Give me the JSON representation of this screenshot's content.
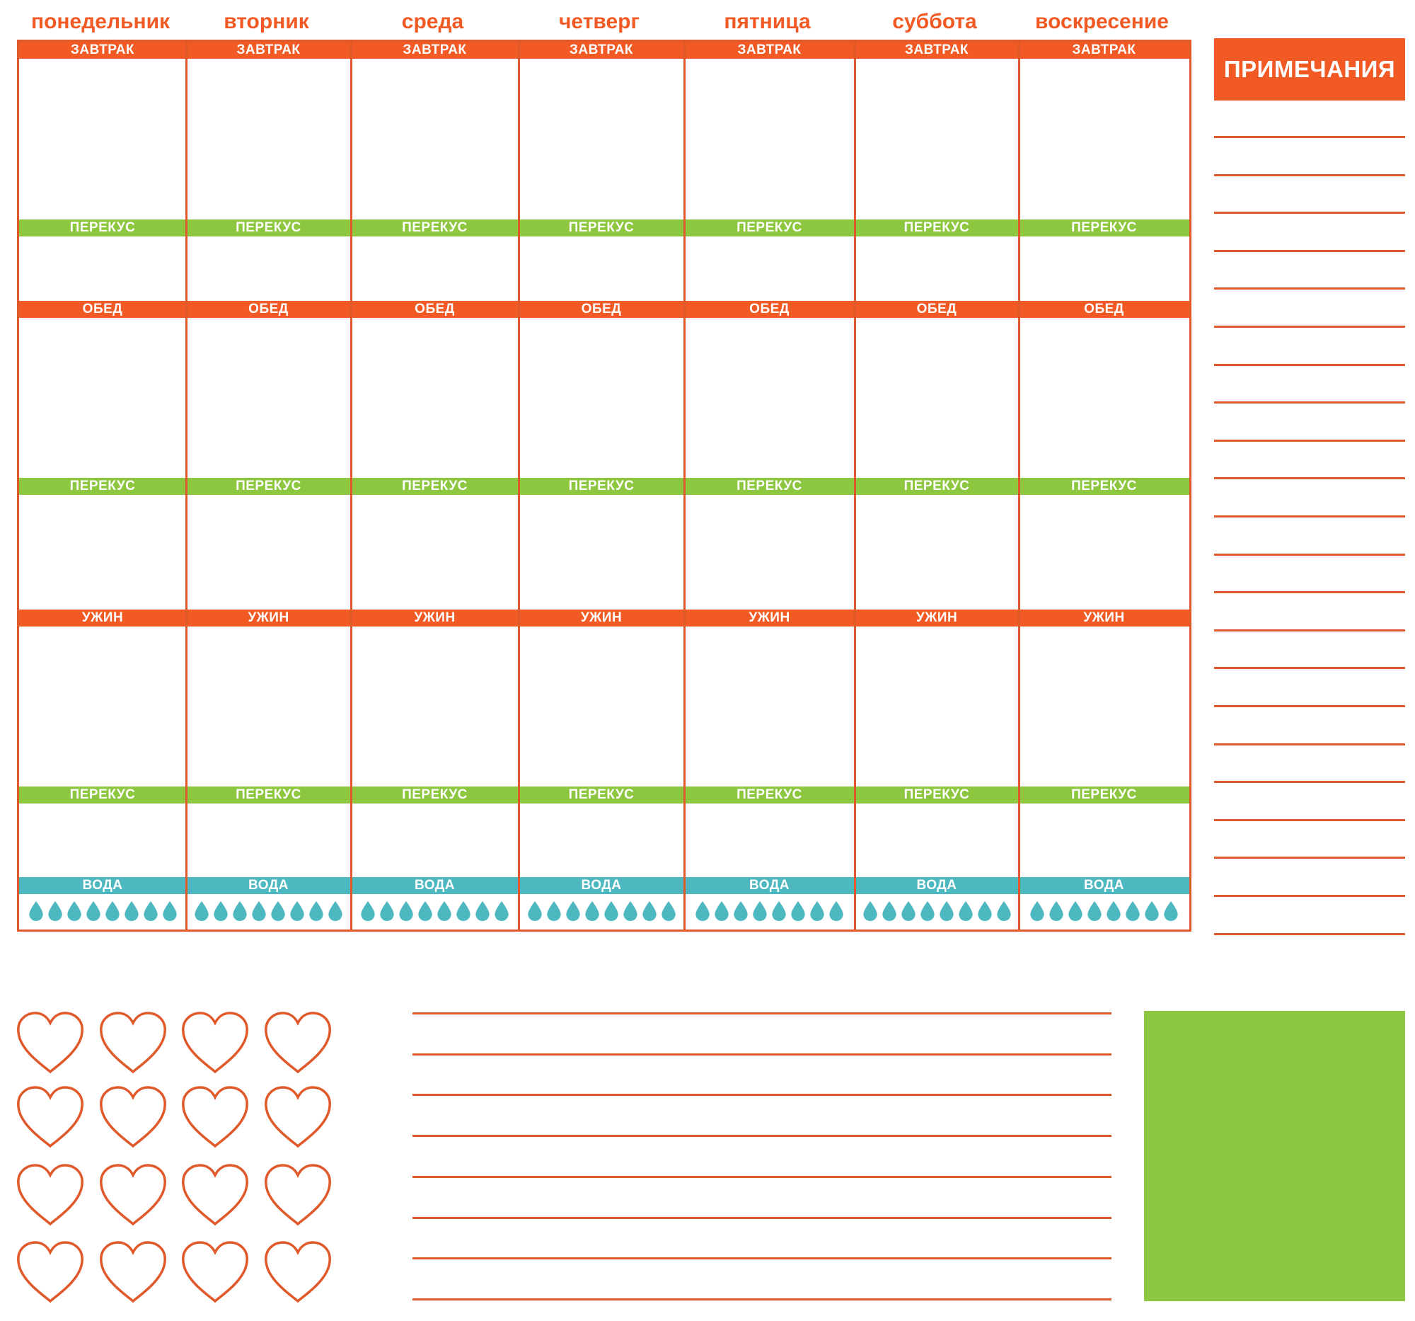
{
  "days": [
    "понедельник",
    "вторник",
    "среда",
    "четверг",
    "пятница",
    "суббота",
    "воскресение"
  ],
  "meals": [
    {
      "label": "ЗАВТРАК",
      "color": "#f15a24"
    },
    {
      "label": "ПЕРЕКУС",
      "color": "#8dc63f"
    },
    {
      "label": "ОБЕД",
      "color": "#f15a24"
    },
    {
      "label": "ПЕРЕКУС",
      "color": "#8dc63f"
    },
    {
      "label": "УЖИН",
      "color": "#f15a24"
    },
    {
      "label": "ПЕРЕКУС",
      "color": "#8dc63f"
    },
    {
      "label": "ВОДА",
      "color": "#4eb8c1"
    }
  ],
  "water_drops_per_day": 8,
  "notes": {
    "title": "ПРИМЕЧАНИЯ",
    "line_count": 22
  },
  "memo_lines": 8,
  "hearts": {
    "rows": 4,
    "cols": 4
  },
  "colors": {
    "orange": "#f15a24",
    "border": "#e0592b",
    "green": "#8dc63f",
    "teal": "#4eb8c1"
  },
  "icons": [
    "water-drop-icon",
    "heart-icon"
  ]
}
